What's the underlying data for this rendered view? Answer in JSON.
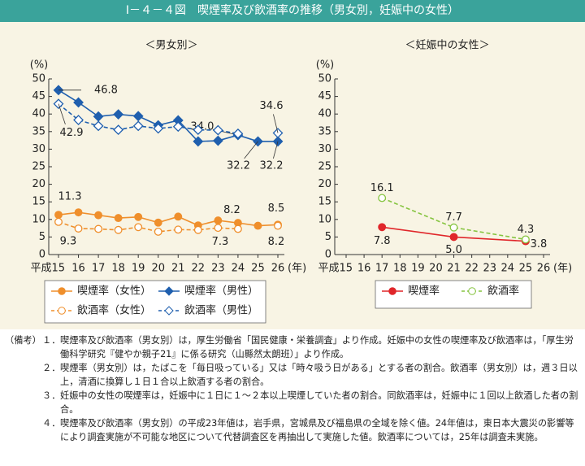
{
  "header": {
    "title": "Ⅰ－４－４図　喫煙率及び飲酒率の推移（男女別，妊娠中の女性）"
  },
  "chart_data": [
    {
      "type": "line",
      "title": "＜男女別＞",
      "y_unit": "(%)",
      "x_unit": "(年)",
      "categories": [
        "平成15",
        "16",
        "17",
        "18",
        "19",
        "20",
        "21",
        "22",
        "23",
        "24",
        "25",
        "26"
      ],
      "ylim": [
        0,
        50
      ],
      "yticks": [
        0,
        5,
        10,
        15,
        20,
        25,
        30,
        35,
        40,
        45,
        50
      ],
      "legend_columns": 2,
      "series": [
        {
          "name": "喫煙率（女性）",
          "color": "#ef8f2c",
          "marker": "circle",
          "marker_fill": "filled",
          "line_style": "solid",
          "values": [
            11.3,
            12.0,
            11.2,
            10.4,
            10.7,
            9.1,
            10.8,
            8.3,
            9.7,
            9.0,
            8.2,
            8.5
          ],
          "value_labels": [
            "11.3",
            null,
            null,
            null,
            null,
            null,
            null,
            null,
            null,
            null,
            "8.2",
            "8.5"
          ]
        },
        {
          "name": "喫煙率（男性）",
          "color": "#1f5fae",
          "marker": "diamond",
          "marker_fill": "filled",
          "line_style": "solid",
          "values": [
            46.8,
            43.3,
            39.3,
            39.9,
            39.4,
            36.8,
            38.2,
            32.2,
            32.4,
            34.0,
            32.2,
            32.2
          ],
          "value_labels": [
            "46.8",
            null,
            null,
            null,
            null,
            null,
            null,
            null,
            null,
            "34.0",
            "32.2",
            "32.2"
          ]
        },
        {
          "name": "飲酒率（女性）",
          "color": "#ef8f2c",
          "marker": "circle",
          "marker_fill": "open",
          "line_style": "dashed",
          "values": [
            9.3,
            7.4,
            7.3,
            7.0,
            7.8,
            6.5,
            7.1,
            7.0,
            7.6,
            7.3,
            null,
            8.2
          ],
          "value_labels": [
            "9.3",
            null,
            null,
            null,
            null,
            null,
            null,
            null,
            null,
            "7.3",
            null,
            "8.2"
          ]
        },
        {
          "name": "飲酒率（男性）",
          "color": "#1f5fae",
          "marker": "diamond",
          "marker_fill": "open",
          "line_style": "dashed",
          "values": [
            42.9,
            38.3,
            36.6,
            35.5,
            36.6,
            35.9,
            36.4,
            35.5,
            35.4,
            34.4,
            null,
            34.6
          ],
          "value_labels": [
            "42.9",
            null,
            null,
            null,
            null,
            null,
            null,
            null,
            null,
            null,
            null,
            "34.6"
          ]
        }
      ]
    },
    {
      "type": "line",
      "title": "＜妊娠中の女性＞",
      "y_unit": "(%)",
      "x_unit": "(年)",
      "x": [
        17,
        21,
        25
      ],
      "xlim": [
        15,
        26
      ],
      "xticks": [
        {
          "value": 15,
          "label": "平成15"
        },
        16,
        17,
        18,
        19,
        20,
        21,
        22,
        23,
        24,
        25,
        26
      ],
      "ylim": [
        0,
        50
      ],
      "yticks": [
        0,
        5,
        10,
        15,
        20,
        25,
        30,
        35,
        40,
        45,
        50
      ],
      "legend_columns": 2,
      "series": [
        {
          "name": "喫煙率",
          "color": "#e0262a",
          "marker": "circle",
          "marker_fill": "filled",
          "line_style": "solid",
          "values": [
            7.8,
            5.0,
            3.8
          ],
          "value_labels": [
            "7.8",
            "5.0",
            "3.8"
          ]
        },
        {
          "name": "飲酒率",
          "color": "#86c440",
          "marker": "circle",
          "marker_fill": "open",
          "line_style": "dashed",
          "values": [
            16.1,
            7.7,
            4.3
          ],
          "value_labels": [
            "16.1",
            "7.7",
            "4.3"
          ]
        }
      ]
    }
  ],
  "notes": {
    "prefix": "（備考）",
    "items": [
      {
        "number": "１．",
        "text": "喫煙率及び飲酒率（男女別）は，厚生労働省「国民健康・栄養調査」より作成。妊娠中の女性の喫煙率及び飲酒率は，「厚生労働科学研究『健やか親子21』に係る研究（山縣然太朗班）」より作成。"
      },
      {
        "number": "２．",
        "text": "喫煙率（男女別）は，たばこを「毎日吸っている」又は「時々吸う日がある」とする者の割合。飲酒率（男女別）は，週３日以上，清酒に換算し１日１合以上飲酒する者の割合。"
      },
      {
        "number": "３．",
        "text": "妊娠中の女性の喫煙率は，妊娠中に１日に１～２本以上喫煙していた者の割合。同飲酒率は，妊娠中に１回以上飲酒した者の割合。"
      },
      {
        "number": "４．",
        "text": "喫煙率及び飲酒率（男女別）の平成23年値は，岩手県，宮城県及び福島県の全域を除く値。24年値は，東日本大震災の影響等により調査実施が不可能な地区について代替調査区を再抽出して実施した値。飲酒率については，25年は調査未実施。"
      }
    ]
  }
}
